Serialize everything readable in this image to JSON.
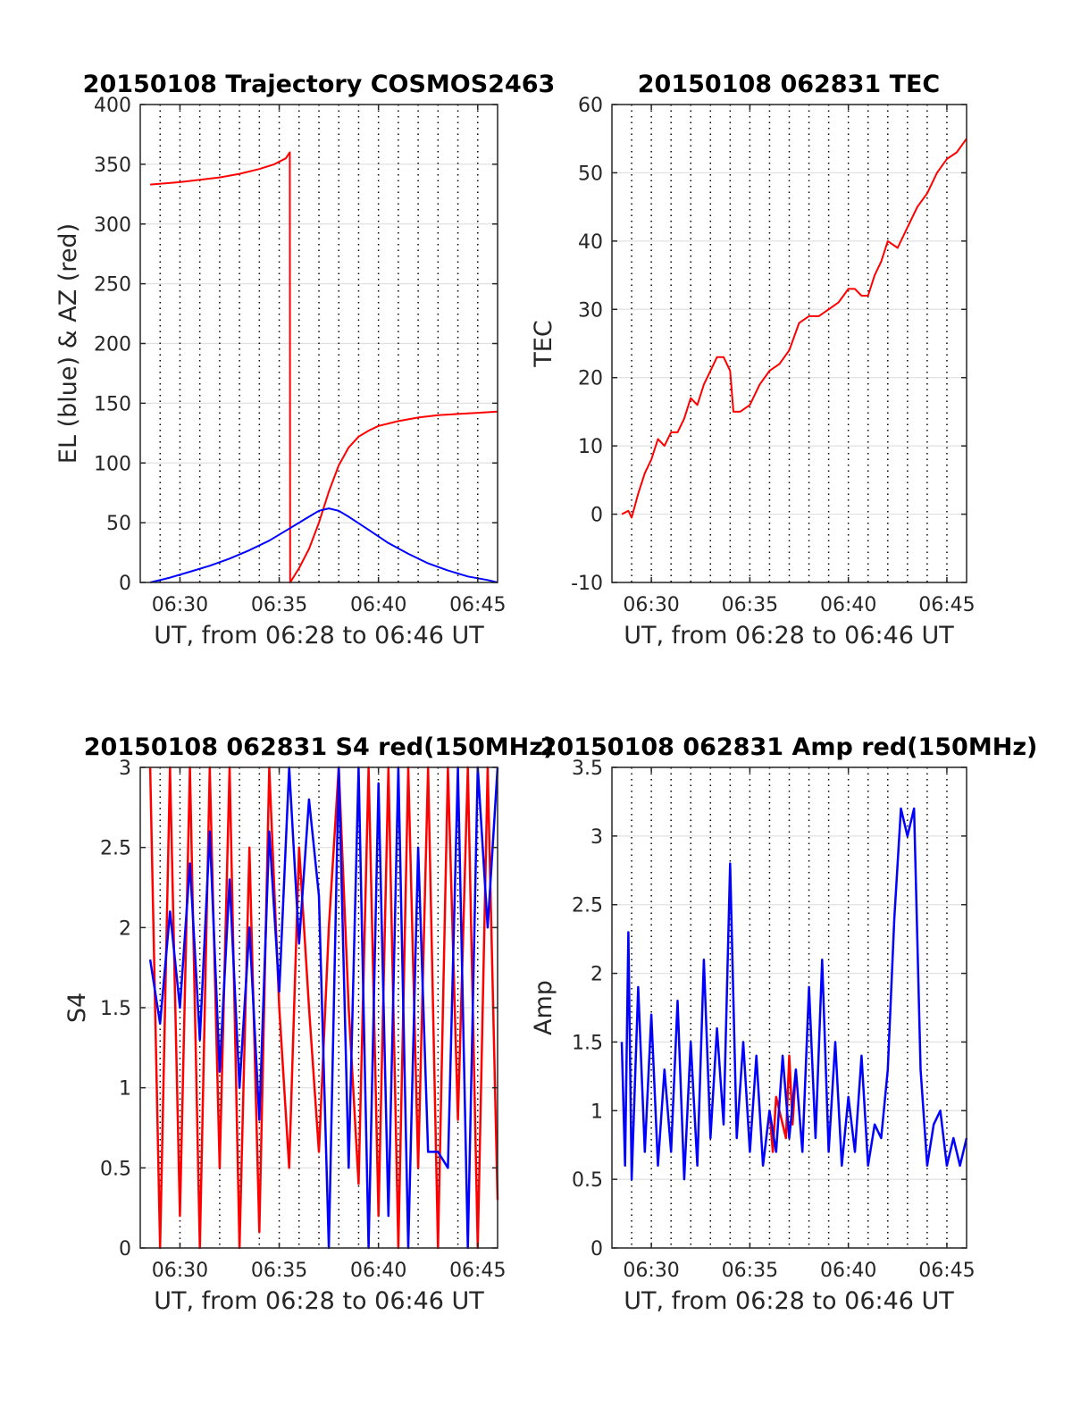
{
  "figure": {
    "time_range": [
      "06:28",
      "06:46"
    ],
    "tick_times": [
      "06:30",
      "06:35",
      "06:40",
      "06:45"
    ],
    "dotted_grid_times": [
      "06:29",
      "06:30",
      "06:31",
      "06:32",
      "06:33",
      "06:34",
      "06:35",
      "06:36",
      "06:37",
      "06:38",
      "06:39",
      "06:40",
      "06:41",
      "06:42",
      "06:43",
      "06:44",
      "06:45"
    ],
    "colors": {
      "red": "#ff0000",
      "blue": "#0000ff",
      "grid": "#e0e0e0",
      "axis": "#262626"
    }
  },
  "chart_data": [
    {
      "type": "line",
      "title": "20150108 Trajectory COSMOS2463",
      "xlabel": "UT, from 06:28 to 06:46 UT",
      "ylabel": "EL (blue) & AZ (red)",
      "ylim": [
        0,
        400
      ],
      "yticks": [
        0,
        50,
        100,
        150,
        200,
        250,
        300,
        350,
        400
      ],
      "xticks": [
        "06:30",
        "06:35",
        "06:40",
        "06:45"
      ],
      "grid": true,
      "series": [
        {
          "color": "#ff0000",
          "x": [
            "06:28:30",
            "06:30:00",
            "06:31:00",
            "06:32:00",
            "06:33:00",
            "06:34:00",
            "06:34:45",
            "06:35:20",
            "06:35:32",
            "06:35:33",
            "06:36:00",
            "06:36:30",
            "06:37:00",
            "06:37:30",
            "06:38:00",
            "06:38:30",
            "06:39:00",
            "06:39:30",
            "06:40:00",
            "06:41:00",
            "06:42:00",
            "06:43:00",
            "06:44:00",
            "06:45:00",
            "06:46:00"
          ],
          "values": [
            333,
            335,
            337,
            339,
            342,
            346,
            350,
            355,
            360,
            0,
            12,
            28,
            50,
            76,
            98,
            113,
            122,
            127,
            131,
            135,
            138,
            140,
            141,
            142,
            143
          ]
        },
        {
          "color": "#0000ff",
          "x": [
            "06:28:30",
            "06:29:30",
            "06:30:30",
            "06:31:30",
            "06:32:30",
            "06:33:30",
            "06:34:30",
            "06:35:30",
            "06:36:30",
            "06:37:00",
            "06:37:30",
            "06:38:00",
            "06:38:30",
            "06:39:30",
            "06:40:30",
            "06:41:30",
            "06:42:30",
            "06:43:30",
            "06:44:30",
            "06:45:30",
            "06:46:00"
          ],
          "values": [
            0,
            4,
            9,
            14,
            20,
            27,
            35,
            45,
            55,
            60,
            62,
            60,
            55,
            44,
            33,
            24,
            16,
            10,
            5,
            2,
            0
          ]
        }
      ]
    },
    {
      "type": "line",
      "title": "20150108 062831 TEC",
      "xlabel": "UT, from 06:28 to 06:46 UT",
      "ylabel": "TEC",
      "ylim": [
        -10,
        60
      ],
      "yticks": [
        -10,
        0,
        10,
        20,
        30,
        40,
        50,
        60
      ],
      "xticks": [
        "06:30",
        "06:35",
        "06:40",
        "06:45"
      ],
      "grid": true,
      "series": [
        {
          "color": "#ff0000",
          "x": [
            "06:28:30",
            "06:28:50",
            "06:29:00",
            "06:29:20",
            "06:29:40",
            "06:30:00",
            "06:30:20",
            "06:30:40",
            "06:31:00",
            "06:31:20",
            "06:31:40",
            "06:32:00",
            "06:32:20",
            "06:32:40",
            "06:33:00",
            "06:33:20",
            "06:33:40",
            "06:34:00",
            "06:34:10",
            "06:34:30",
            "06:35:00",
            "06:35:30",
            "06:36:00",
            "06:36:30",
            "06:37:00",
            "06:37:30",
            "06:38:00",
            "06:38:30",
            "06:39:00",
            "06:39:30",
            "06:40:00",
            "06:40:20",
            "06:40:40",
            "06:41:00",
            "06:41:20",
            "06:41:40",
            "06:42:00",
            "06:42:30",
            "06:43:00",
            "06:43:30",
            "06:44:00",
            "06:44:30",
            "06:45:00",
            "06:45:30",
            "06:46:00"
          ],
          "values": [
            0,
            0.5,
            -0.5,
            3,
            6,
            8,
            11,
            10,
            12,
            12,
            14,
            17,
            16,
            19,
            21,
            23,
            23,
            21,
            15,
            15,
            16,
            19,
            21,
            22,
            24,
            28,
            29,
            29,
            30,
            31,
            33,
            33,
            32,
            32,
            35,
            37,
            40,
            39,
            42,
            45,
            47,
            50,
            52,
            53,
            55
          ]
        }
      ]
    },
    {
      "type": "line",
      "title": "20150108 062831 S4 red(150MHz)",
      "xlabel": "UT, from 06:28 to 06:46 UT",
      "ylabel": "S4",
      "ylim": [
        0,
        3
      ],
      "yticks": [
        0,
        0.5,
        1,
        1.5,
        2,
        2.5,
        3
      ],
      "xticks": [
        "06:30",
        "06:35",
        "06:40",
        "06:45"
      ],
      "grid": true,
      "series": [
        {
          "color": "#ff0000",
          "x": [
            "06:28:30",
            "06:29:00",
            "06:29:30",
            "06:30:00",
            "06:30:30",
            "06:31:00",
            "06:31:30",
            "06:32:00",
            "06:32:30",
            "06:33:00",
            "06:33:30",
            "06:34:00",
            "06:34:30",
            "06:35:00",
            "06:35:30",
            "06:36:00",
            "06:36:30",
            "06:37:00",
            "06:37:30",
            "06:38:00",
            "06:38:30",
            "06:39:00",
            "06:39:30",
            "06:40:00",
            "06:40:30",
            "06:41:00",
            "06:41:30",
            "06:42:00",
            "06:42:30",
            "06:43:00",
            "06:43:30",
            "06:44:00",
            "06:44:30",
            "06:45:00",
            "06:45:30",
            "06:46:00"
          ],
          "values": [
            3,
            0,
            3,
            0.2,
            3,
            0,
            3,
            0.5,
            3,
            0,
            2.5,
            0.1,
            3,
            1.5,
            0.5,
            2.5,
            1.5,
            0.6,
            2,
            3,
            1.5,
            0.4,
            3,
            0.2,
            3,
            0,
            3,
            0.5,
            3,
            0,
            3,
            0.8,
            3,
            0,
            3,
            0.3
          ]
        },
        {
          "color": "#0000ff",
          "x": [
            "06:28:30",
            "06:29:00",
            "06:29:30",
            "06:30:00",
            "06:30:30",
            "06:31:00",
            "06:31:30",
            "06:32:00",
            "06:32:30",
            "06:33:00",
            "06:33:30",
            "06:34:00",
            "06:34:30",
            "06:35:00",
            "06:35:30",
            "06:36:00",
            "06:36:30",
            "06:37:00",
            "06:37:30",
            "06:38:00",
            "06:38:30",
            "06:39:00",
            "06:39:30",
            "06:40:00",
            "06:40:30",
            "06:41:00",
            "06:41:30",
            "06:42:00",
            "06:42:30",
            "06:43:00",
            "06:43:30",
            "06:44:00",
            "06:44:30",
            "06:45:00",
            "06:45:30",
            "06:46:00"
          ],
          "values": [
            1.8,
            1.4,
            2.1,
            1.5,
            2.4,
            1.3,
            2.6,
            1.1,
            2.3,
            1.0,
            2.0,
            0.8,
            2.6,
            1.6,
            3,
            1.9,
            2.8,
            2.2,
            0,
            3,
            0.5,
            3,
            0,
            2.9,
            0.2,
            3,
            0,
            2.5,
            0.6,
            0.6,
            0.5,
            3,
            0,
            3,
            2.0,
            3
          ]
        }
      ]
    },
    {
      "type": "line",
      "title": "20150108 062831 Amp red(150MHz)",
      "xlabel": "UT, from 06:28 to 06:46 UT",
      "ylabel": "Amp",
      "ylim": [
        0,
        3.5
      ],
      "yticks": [
        0,
        0.5,
        1,
        1.5,
        2,
        2.5,
        3,
        3.5
      ],
      "xticks": [
        "06:30",
        "06:35",
        "06:40",
        "06:45"
      ],
      "grid": true,
      "series": [
        {
          "color": "#ff0000",
          "x": [
            "06:36:00",
            "06:36:10",
            "06:36:20",
            "06:36:50",
            "06:37:00",
            "06:37:10",
            "06:37:20"
          ],
          "values": [
            1.0,
            0.7,
            1.1,
            0.8,
            1.4,
            0.9,
            1.3
          ]
        },
        {
          "color": "#0000ff",
          "x": [
            "06:28:30",
            "06:28:40",
            "06:28:50",
            "06:29:00",
            "06:29:20",
            "06:29:40",
            "06:30:00",
            "06:30:20",
            "06:30:40",
            "06:31:00",
            "06:31:20",
            "06:31:40",
            "06:32:00",
            "06:32:20",
            "06:32:40",
            "06:33:00",
            "06:33:20",
            "06:33:40",
            "06:34:00",
            "06:34:20",
            "06:34:40",
            "06:35:00",
            "06:35:20",
            "06:35:40",
            "06:36:00",
            "06:36:20",
            "06:36:40",
            "06:37:00",
            "06:37:20",
            "06:37:40",
            "06:38:00",
            "06:38:20",
            "06:38:40",
            "06:39:00",
            "06:39:20",
            "06:39:40",
            "06:40:00",
            "06:40:20",
            "06:40:40",
            "06:41:00",
            "06:41:20",
            "06:41:40",
            "06:42:00",
            "06:42:20",
            "06:42:40",
            "06:43:00",
            "06:43:20",
            "06:43:40",
            "06:44:00",
            "06:44:20",
            "06:44:40",
            "06:45:00",
            "06:45:20",
            "06:45:40",
            "06:46:00"
          ],
          "values": [
            1.5,
            0.6,
            2.3,
            0.5,
            1.9,
            0.7,
            1.7,
            0.6,
            1.3,
            0.7,
            1.8,
            0.5,
            1.5,
            0.6,
            2.1,
            0.8,
            1.6,
            0.9,
            2.8,
            0.8,
            1.5,
            0.7,
            1.4,
            0.6,
            1.0,
            0.7,
            1.4,
            0.8,
            1.3,
            0.7,
            1.9,
            0.8,
            2.1,
            0.7,
            1.5,
            0.6,
            1.1,
            0.7,
            1.4,
            0.6,
            0.9,
            0.8,
            1.3,
            2.4,
            3.2,
            3.0,
            3.2,
            1.3,
            0.6,
            0.9,
            1.0,
            0.6,
            0.8,
            0.6,
            0.8
          ]
        }
      ]
    }
  ]
}
